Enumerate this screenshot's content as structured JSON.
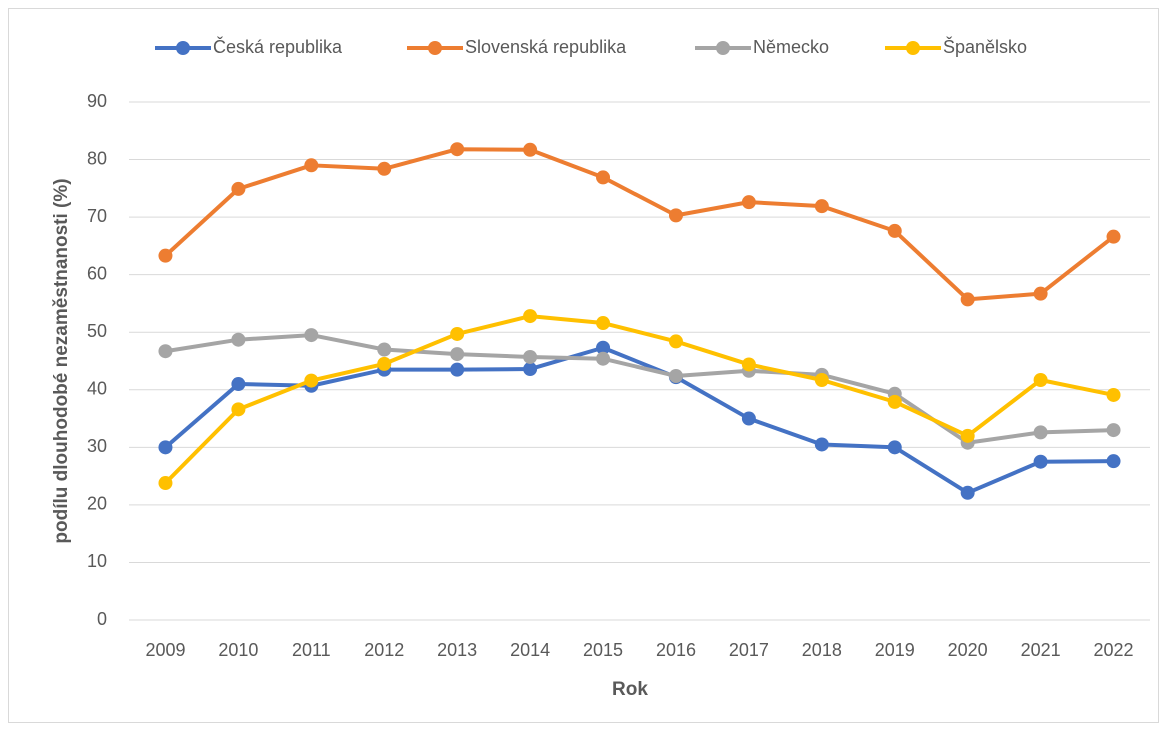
{
  "chart_data": {
    "type": "line",
    "x_label": "Rok",
    "y_label": "podílu dlouhodobé nezaměstnanosti (%)",
    "categories": [
      "2009",
      "2010",
      "2011",
      "2012",
      "2013",
      "2014",
      "2015",
      "2016",
      "2017",
      "2018",
      "2019",
      "2020",
      "2021",
      "2022"
    ],
    "series": [
      {
        "name": "Česká republika",
        "color": "#4472c4",
        "values": [
          30.0,
          41.0,
          40.7,
          43.5,
          43.5,
          43.6,
          47.3,
          42.2,
          35.0,
          30.5,
          30.0,
          22.1,
          27.5,
          27.6
        ]
      },
      {
        "name": "Slovenská republika",
        "color": "#ed7d31",
        "values": [
          63.3,
          74.9,
          79.0,
          78.4,
          81.8,
          81.7,
          76.9,
          70.3,
          72.6,
          71.9,
          67.6,
          55.7,
          56.7,
          66.6
        ]
      },
      {
        "name": "Německo",
        "color": "#a5a5a5",
        "values": [
          46.7,
          48.7,
          49.5,
          47.0,
          46.2,
          45.7,
          45.4,
          42.4,
          43.3,
          42.6,
          39.3,
          30.8,
          32.6,
          33.0
        ]
      },
      {
        "name": "Španělsko",
        "color": "#ffc000",
        "values": [
          23.8,
          36.6,
          41.6,
          44.5,
          49.7,
          52.8,
          51.6,
          48.4,
          44.4,
          41.7,
          37.9,
          32.0,
          41.7,
          39.1
        ]
      }
    ],
    "ylim": [
      0,
      90
    ],
    "yticks": [
      0,
      10,
      20,
      30,
      40,
      50,
      60,
      70,
      80,
      90
    ],
    "grid": true,
    "legend": "top"
  }
}
